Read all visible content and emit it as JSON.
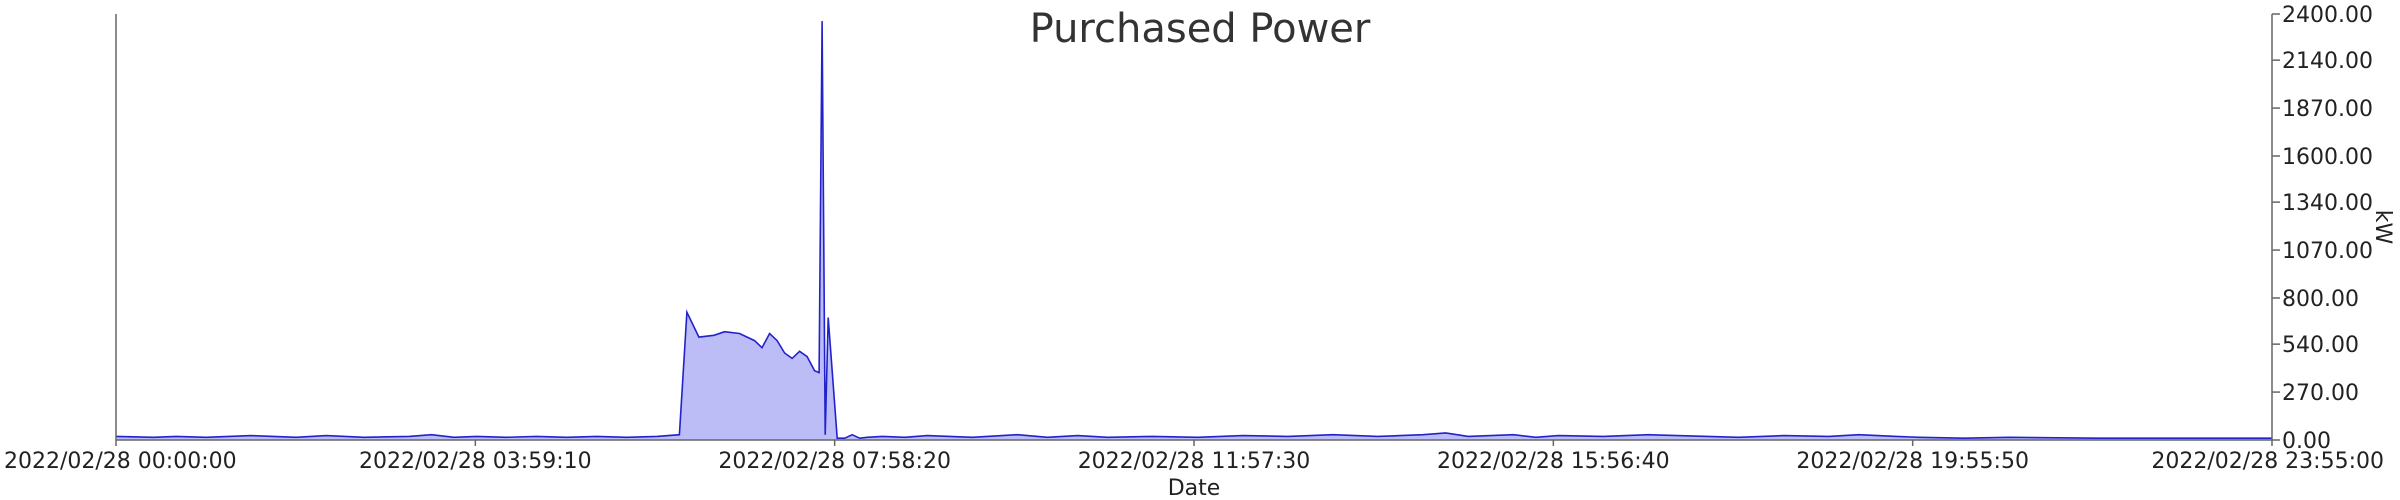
{
  "chart_data": {
    "type": "area",
    "title": "Purchased Power",
    "xlabel": "Date",
    "ylabel": "kW",
    "x_tick_labels": [
      "2022/02/28 00:00:00",
      "2022/02/28 03:59:10",
      "2022/02/28 07:58:20",
      "2022/02/28 11:57:30",
      "2022/02/28 15:56:40",
      "2022/02/28 19:55:50",
      "2022/02/28 23:55:00"
    ],
    "y_tick_labels": [
      "0.00",
      "270.00",
      "540.00",
      "800.00",
      "1070.00",
      "1340.00",
      "1600.00",
      "1870.00",
      "2140.00",
      "2400.00"
    ],
    "xlim": [
      "2022/02/28 00:00:00",
      "2022/02/28 23:55:00"
    ],
    "ylim": [
      0,
      2400
    ],
    "y_axis_position": "right",
    "grid": false,
    "legend": "none",
    "colors": {
      "line": "#2222cc",
      "fill": "#bcbcf7",
      "axis": "#666666"
    },
    "series": [
      {
        "x": [
          "00:00",
          "00:25",
          "00:40",
          "01:00",
          "01:30",
          "02:00",
          "02:20",
          "02:45",
          "03:15",
          "03:30",
          "03:45",
          "04:00",
          "04:20",
          "04:40",
          "05:00",
          "05:20",
          "05:40",
          "06:00",
          "06:15",
          "06:20",
          "06:28",
          "06:38",
          "06:45",
          "06:55",
          "07:05",
          "07:10",
          "07:15",
          "07:20",
          "07:25",
          "07:30",
          "07:35",
          "07:40",
          "07:45",
          "07:48",
          "07:50",
          "07:52",
          "07:54",
          "08:00",
          "08:05",
          "08:10",
          "08:15",
          "08:20",
          "08:30",
          "08:45",
          "09:00",
          "09:30",
          "10:00",
          "10:20",
          "10:40",
          "11:00",
          "11:30",
          "12:00",
          "12:30",
          "13:00",
          "13:30",
          "14:00",
          "14:30",
          "14:45",
          "15:00",
          "15:30",
          "15:45",
          "16:00",
          "16:30",
          "17:00",
          "18:00",
          "18:30",
          "19:00",
          "19:20",
          "19:45",
          "20:00",
          "20:30",
          "21:00",
          "22:00",
          "23:00",
          "23:55"
        ],
        "y": [
          20,
          15,
          20,
          15,
          25,
          15,
          25,
          15,
          20,
          30,
          15,
          20,
          15,
          20,
          15,
          20,
          15,
          20,
          30,
          720,
          580,
          590,
          610,
          600,
          560,
          520,
          600,
          560,
          490,
          460,
          500,
          470,
          390,
          380,
          2360,
          30,
          690,
          10,
          10,
          30,
          10,
          15,
          20,
          15,
          25,
          15,
          30,
          15,
          25,
          15,
          20,
          15,
          25,
          20,
          30,
          20,
          30,
          40,
          20,
          30,
          15,
          25,
          20,
          30,
          15,
          25,
          20,
          30,
          20,
          15,
          10,
          15,
          10,
          10,
          10
        ]
      }
    ]
  }
}
